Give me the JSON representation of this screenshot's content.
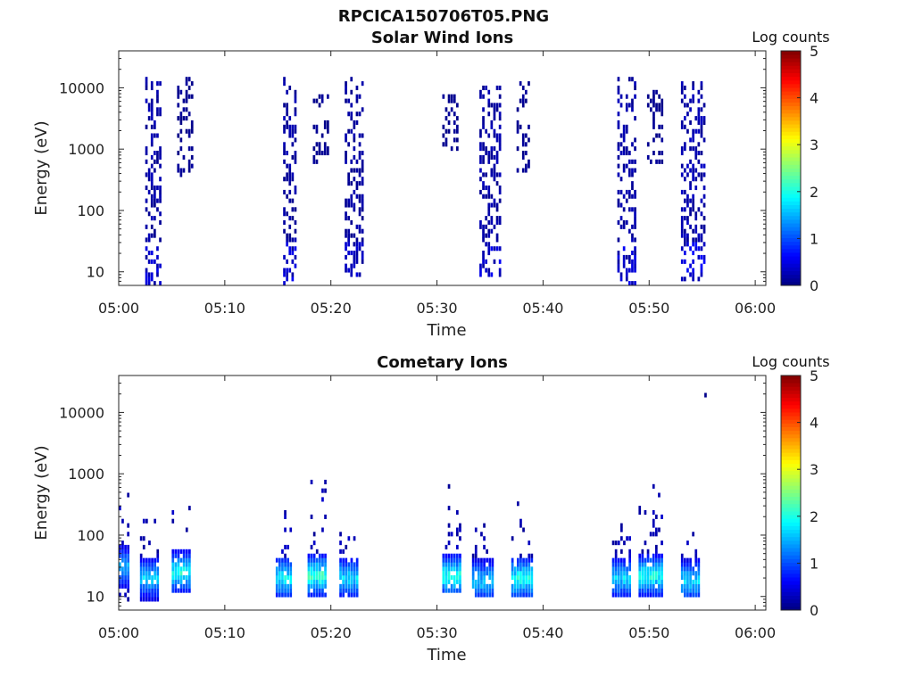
{
  "figure": {
    "title": "RPCICA150706T05.PNG"
  },
  "chart_data": [
    {
      "type": "heatmap",
      "title": "Solar Wind Ions",
      "xlabel": "Time",
      "ylabel": "Energy (eV)",
      "y_scale": "log",
      "ylim": [
        6,
        40000
      ],
      "xlim": [
        "05:00",
        "06:01"
      ],
      "x_ticks": [
        "05:00",
        "05:10",
        "05:20",
        "05:30",
        "05:40",
        "05:50",
        "06:00"
      ],
      "y_ticks": [
        "10",
        "100",
        "1000",
        "10000"
      ],
      "colorbar": {
        "label": "Log counts",
        "range": [
          0,
          5
        ],
        "ticks": [
          "0",
          "1",
          "2",
          "3",
          "4",
          "5"
        ],
        "colormap": "jet"
      },
      "grid": false,
      "bursts": [
        {
          "start": "05:02.5",
          "end": "05:04.0",
          "e_min": 6,
          "e_max": 15000,
          "max_log_counts": 0.6
        },
        {
          "start": "05:05.5",
          "end": "05:07.0",
          "e_min": 350,
          "e_max": 17000,
          "max_log_counts": 0.3
        },
        {
          "start": "05:15.5",
          "end": "05:16.8",
          "e_min": 6,
          "e_max": 15000,
          "max_log_counts": 0.6
        },
        {
          "start": "05:18.3",
          "end": "05:19.8",
          "e_min": 600,
          "e_max": 10000,
          "max_log_counts": 0.3
        },
        {
          "start": "05:21.3",
          "end": "05:23.0",
          "e_min": 9,
          "e_max": 16000,
          "max_log_counts": 0.5
        },
        {
          "start": "05:30.5",
          "end": "05:32.0",
          "e_min": 1000,
          "e_max": 8000,
          "max_log_counts": 0.3
        },
        {
          "start": "05:34.0",
          "end": "05:36.0",
          "e_min": 8,
          "e_max": 12000,
          "max_log_counts": 0.6
        },
        {
          "start": "05:37.5",
          "end": "05:38.8",
          "e_min": 400,
          "e_max": 14000,
          "max_log_counts": 0.3
        },
        {
          "start": "05:47.0",
          "end": "05:48.7",
          "e_min": 6,
          "e_max": 15000,
          "max_log_counts": 0.6
        },
        {
          "start": "05:49.8",
          "end": "05:51.2",
          "e_min": 600,
          "e_max": 10000,
          "max_log_counts": 0.3
        },
        {
          "start": "05:53.0",
          "end": "05:55.2",
          "e_min": 7,
          "e_max": 13000,
          "max_log_counts": 0.7
        }
      ]
    },
    {
      "type": "heatmap",
      "title": "Cometary Ions",
      "xlabel": "Time",
      "ylabel": "Energy (eV)",
      "y_scale": "log",
      "ylim": [
        6,
        40000
      ],
      "xlim": [
        "05:00",
        "06:01"
      ],
      "x_ticks": [
        "05:00",
        "05:10",
        "05:20",
        "05:30",
        "05:40",
        "05:50",
        "06:00"
      ],
      "y_ticks": [
        "10",
        "100",
        "1000",
        "10000"
      ],
      "colorbar": {
        "label": "Log counts",
        "range": [
          0,
          5
        ],
        "ticks": [
          "0",
          "1",
          "2",
          "3",
          "4",
          "5"
        ],
        "colormap": "jet"
      },
      "grid": false,
      "bursts": [
        {
          "start": "05:00.0",
          "end": "05:01.0",
          "e_min": 8,
          "e_max": 500,
          "core_e": 30,
          "max_log_counts": 1.8
        },
        {
          "start": "05:02.0",
          "end": "05:03.7",
          "e_min": 7,
          "e_max": 200,
          "core_e": 20,
          "max_log_counts": 1.9
        },
        {
          "start": "05:05.0",
          "end": "05:06.7",
          "e_min": 12,
          "e_max": 1500,
          "core_e": 25,
          "max_log_counts": 2.3
        },
        {
          "start": "05:14.8",
          "end": "05:16.3",
          "e_min": 10,
          "e_max": 300,
          "core_e": 20,
          "max_log_counts": 2.2
        },
        {
          "start": "05:17.8",
          "end": "05:19.5",
          "e_min": 10,
          "e_max": 1100,
          "core_e": 22,
          "max_log_counts": 2.5
        },
        {
          "start": "05:20.8",
          "end": "05:22.5",
          "e_min": 10,
          "e_max": 200,
          "core_e": 20,
          "max_log_counts": 2.0
        },
        {
          "start": "05:30.5",
          "end": "05:32.3",
          "e_min": 12,
          "e_max": 700,
          "core_e": 22,
          "max_log_counts": 2.4
        },
        {
          "start": "05:33.3",
          "end": "05:35.2",
          "e_min": 10,
          "e_max": 150,
          "core_e": 18,
          "max_log_counts": 1.9
        },
        {
          "start": "05:37.0",
          "end": "05:39.0",
          "e_min": 10,
          "e_max": 700,
          "core_e": 20,
          "max_log_counts": 2.3
        },
        {
          "start": "05:46.5",
          "end": "05:48.3",
          "e_min": 10,
          "e_max": 200,
          "core_e": 20,
          "max_log_counts": 2.0
        },
        {
          "start": "05:49.0",
          "end": "05:51.2",
          "e_min": 10,
          "e_max": 800,
          "core_e": 22,
          "max_log_counts": 2.3
        },
        {
          "start": "05:53.0",
          "end": "05:54.7",
          "e_min": 10,
          "e_max": 120,
          "core_e": 18,
          "max_log_counts": 2.0
        },
        {
          "start": "05:55.2",
          "end": "05:55.4",
          "e_min": 18000,
          "e_max": 22000,
          "max_log_counts": 0.2
        }
      ]
    }
  ]
}
